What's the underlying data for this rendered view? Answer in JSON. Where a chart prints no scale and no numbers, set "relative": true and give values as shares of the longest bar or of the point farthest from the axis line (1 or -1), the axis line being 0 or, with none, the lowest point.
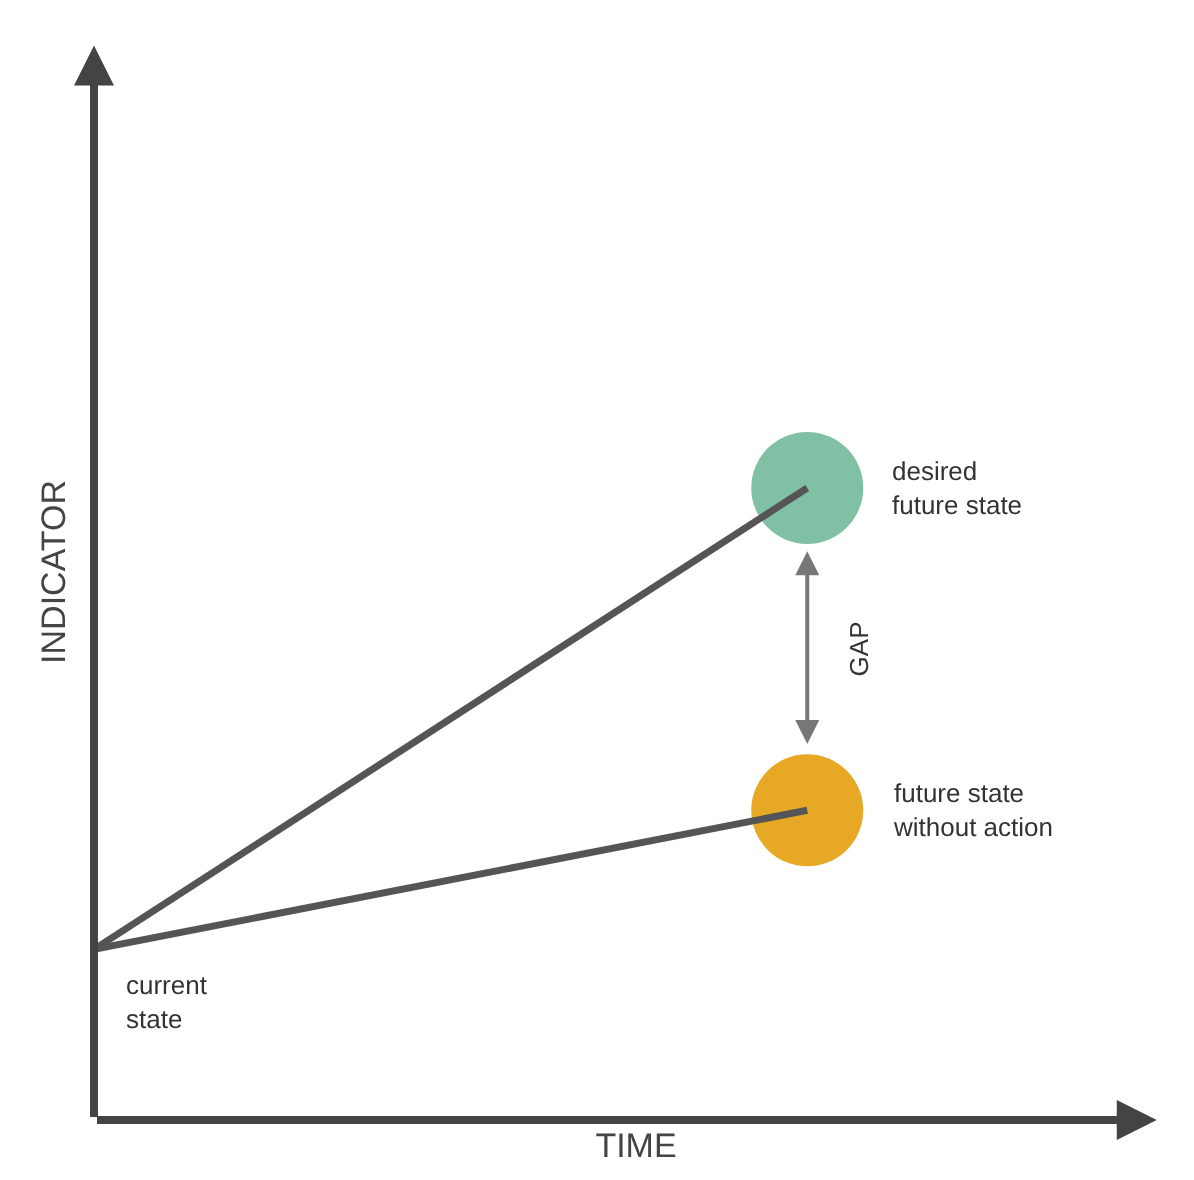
{
  "chart_data": {
    "type": "line",
    "relative": true,
    "xlabel": "TIME",
    "ylabel": "INDICATOR",
    "categories": [
      null,
      null
    ],
    "series": [
      {
        "color": "#555555",
        "values": [
          0.27,
          1
        ],
        "colors": [
          null,
          "#80c0a4"
        ]
      },
      {
        "color": "#555555",
        "values": [
          0.27,
          0.49
        ],
        "colors": [
          null,
          "#e6a825"
        ]
      }
    ],
    "annotations": [
      "desired\nfuture state",
      "future state\nwithout action",
      "current\nstate",
      "GAP"
    ]
  }
}
